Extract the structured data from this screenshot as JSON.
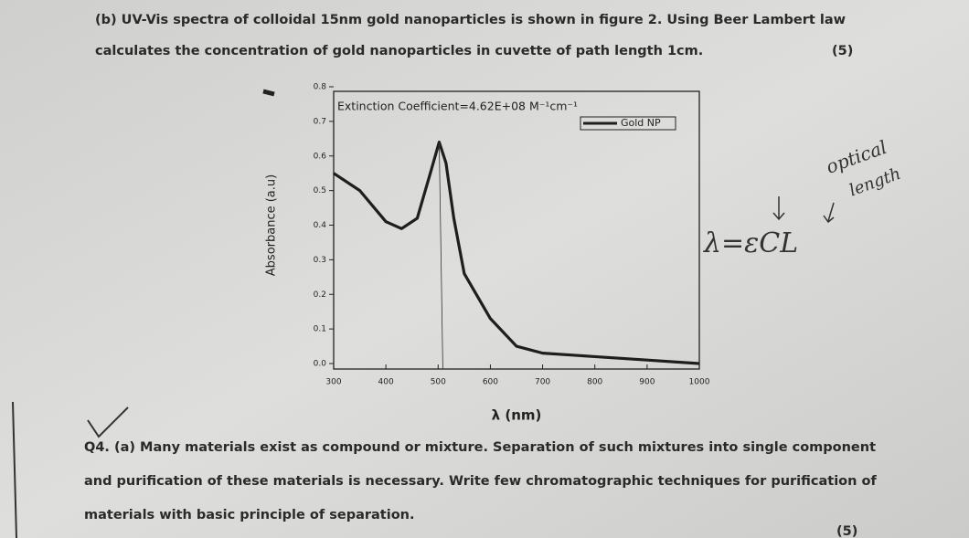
{
  "question_b": {
    "lines": [
      "(b) UV-Vis spectra of colloidal 15nm gold nanoparticles is shown in figure 2. Using Beer Lambert law",
      "calculates the concentration of gold nanoparticles in cuvette of path length 1cm."
    ],
    "marks": "(5)"
  },
  "chart_data": {
    "type": "line",
    "annotation": "Extinction Coefficient=4.62E+08 M⁻¹cm⁻¹",
    "x_label": "λ (nm)",
    "y_label": "Absorbance (a.u)",
    "x": [
      300,
      350,
      400,
      430,
      460,
      485,
      502,
      515,
      530,
      550,
      600,
      650,
      700,
      800,
      900,
      1000
    ],
    "series": [
      {
        "name": "Gold NP",
        "color": "#1e1e1e",
        "values": [
          0.55,
          0.5,
          0.41,
          0.39,
          0.42,
          0.55,
          0.64,
          0.58,
          0.42,
          0.26,
          0.13,
          0.05,
          0.03,
          0.02,
          0.01,
          0.0
        ]
      }
    ],
    "xlim": [
      300,
      1000
    ],
    "xticks": [
      300,
      400,
      500,
      600,
      700,
      800,
      900,
      1000
    ],
    "ylim": [
      0,
      0.8
    ],
    "yticks": [
      {
        "value": 0,
        "label": "0.0"
      },
      0.1,
      0.2,
      0.3,
      0.4,
      0.5,
      0.6,
      0.7,
      0.8
    ],
    "legend": "upper right"
  },
  "handwritten": {
    "formula": "λ=εCL",
    "note": [
      "optical",
      "length"
    ]
  },
  "question_4": {
    "lines": [
      "Q4. (a) Many materials exist as compound or mixture. Separation of such mixtures into single component",
      "and purification of these materials is necessary. Write few chromatographic techniques for purification of",
      "materials with basic principle of separation."
    ],
    "marks": "(5)"
  }
}
